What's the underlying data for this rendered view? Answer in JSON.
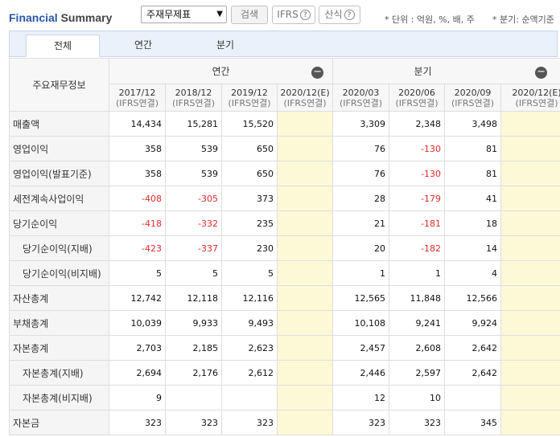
{
  "header": {
    "title_part1": "Financial",
    "title_part2": "Summary",
    "statement_select": "주재무제표",
    "search_button": "검색",
    "ifrs_button": "IFRS",
    "formula_button": "산식",
    "unit_note": "* 단위 : 억원, %, 배, 주",
    "period_note": "* 분기: 순액기준",
    "help_glyph": "?"
  },
  "tabs": [
    {
      "label": "전체",
      "active": true
    },
    {
      "label": "연간",
      "active": false
    },
    {
      "label": "분기",
      "active": false
    }
  ],
  "table": {
    "corner_label": "주요재무정보",
    "group_annual": "연간",
    "group_quarterly": "분기",
    "collapse_glyph": "−",
    "periods": [
      {
        "date": "2017/12",
        "basis": "(IFRS연결)"
      },
      {
        "date": "2018/12",
        "basis": "(IFRS연결)"
      },
      {
        "date": "2019/12",
        "basis": "(IFRS연결)"
      },
      {
        "date": "2020/12(E)",
        "basis": "(IFRS연결)"
      },
      {
        "date": "2020/03",
        "basis": "(IFRS연결)"
      },
      {
        "date": "2020/06",
        "basis": "(IFRS연결)"
      },
      {
        "date": "2020/09",
        "basis": "(IFRS연결)"
      },
      {
        "date": "2020/12(E)",
        "basis": "(IFRS연결)"
      }
    ],
    "rows": [
      {
        "label": "매출액",
        "indent": false,
        "values": [
          "14,434",
          "15,281",
          "15,520",
          "",
          "3,309",
          "2,348",
          "3,498",
          ""
        ]
      },
      {
        "label": "영업이익",
        "indent": false,
        "values": [
          "358",
          "539",
          "650",
          "",
          "76",
          "-130",
          "81",
          ""
        ]
      },
      {
        "label": "영업이익(발표기준)",
        "indent": false,
        "values": [
          "358",
          "539",
          "650",
          "",
          "76",
          "-130",
          "81",
          ""
        ]
      },
      {
        "label": "세전계속사업이익",
        "indent": false,
        "values": [
          "-408",
          "-305",
          "373",
          "",
          "28",
          "-179",
          "41",
          ""
        ]
      },
      {
        "label": "당기순이익",
        "indent": false,
        "values": [
          "-418",
          "-332",
          "235",
          "",
          "21",
          "-181",
          "18",
          ""
        ]
      },
      {
        "label": "당기순이익(지배)",
        "indent": true,
        "values": [
          "-423",
          "-337",
          "230",
          "",
          "20",
          "-182",
          "14",
          ""
        ]
      },
      {
        "label": "당기순이익(비지배)",
        "indent": true,
        "values": [
          "5",
          "5",
          "5",
          "",
          "1",
          "1",
          "4",
          ""
        ]
      },
      {
        "label": "자산총계",
        "indent": false,
        "values": [
          "12,742",
          "12,118",
          "12,116",
          "",
          "12,565",
          "11,848",
          "12,566",
          ""
        ]
      },
      {
        "label": "부채총계",
        "indent": false,
        "values": [
          "10,039",
          "9,933",
          "9,493",
          "",
          "10,108",
          "9,241",
          "9,924",
          ""
        ]
      },
      {
        "label": "자본총계",
        "indent": false,
        "values": [
          "2,703",
          "2,185",
          "2,623",
          "",
          "2,457",
          "2,608",
          "2,642",
          ""
        ]
      },
      {
        "label": "자본총계(지배)",
        "indent": true,
        "values": [
          "2,694",
          "2,176",
          "2,612",
          "",
          "2,446",
          "2,597",
          "2,642",
          ""
        ]
      },
      {
        "label": "자본총계(비지배)",
        "indent": true,
        "values": [
          "9",
          "",
          "",
          "",
          "12",
          "10",
          "",
          ""
        ]
      },
      {
        "label": "자본금",
        "indent": false,
        "values": [
          "323",
          "323",
          "323",
          "",
          "323",
          "323",
          "345",
          ""
        ]
      }
    ]
  },
  "colors": {
    "negative": "#e12b2b",
    "estimate_bg": "#fdf8d6",
    "tab_bg": "#ebf1fb",
    "title_blue": "#2a56a8"
  }
}
